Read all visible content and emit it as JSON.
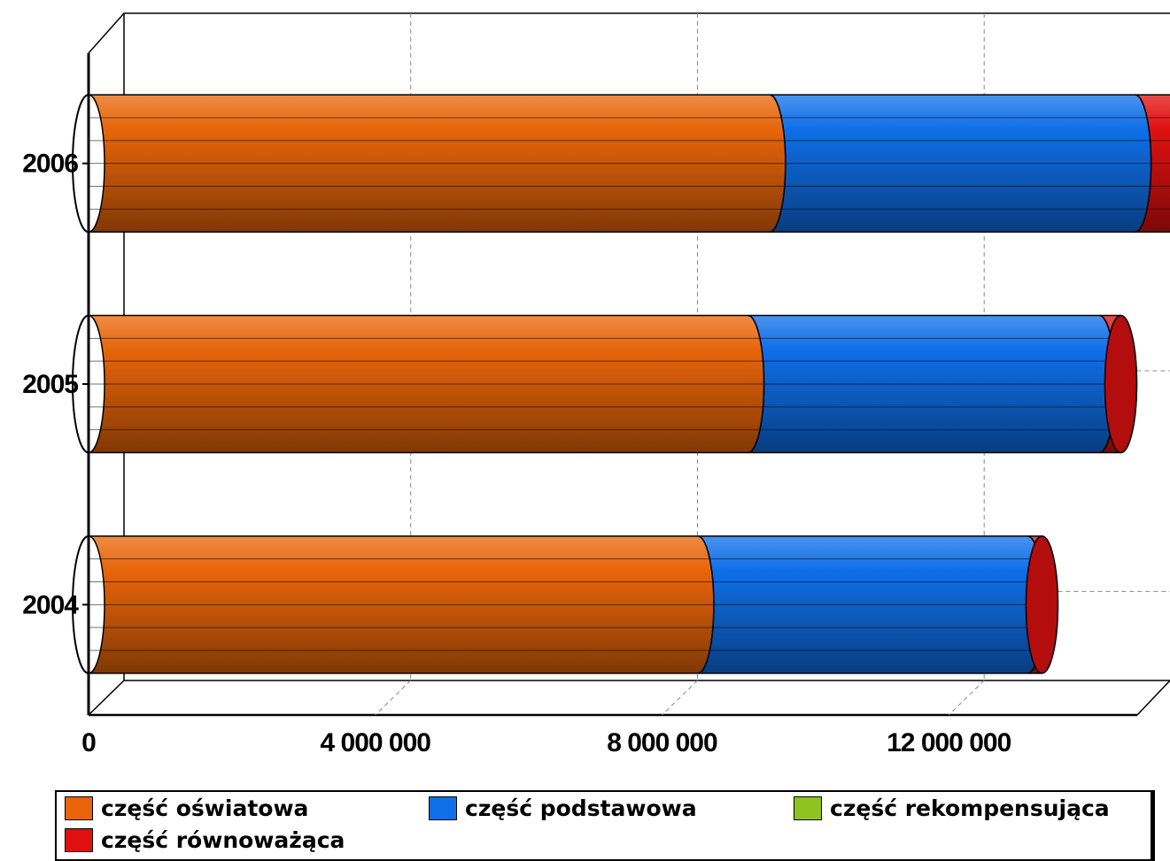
{
  "chart_data": {
    "type": "bar",
    "orientation": "horizontal",
    "stacked": true,
    "style": "3d-cylinder",
    "categories": [
      "2006",
      "2005",
      "2004"
    ],
    "series": [
      {
        "name": "część oświatowa",
        "color": "#e8650a",
        "values": [
          9500000,
          9200000,
          8500000
        ]
      },
      {
        "name": "część podstawowa",
        "color": "#0f6fe8",
        "values": [
          5100000,
          4900000,
          4600000
        ]
      },
      {
        "name": "część rekompensująca",
        "color": "#8fc31f",
        "values": [
          0,
          0,
          0
        ]
      },
      {
        "name": "część równoważąca",
        "color": "#e01010",
        "values": [
          800000,
          300000,
          200000
        ]
      }
    ],
    "xlim": [
      0,
      15000000
    ],
    "xticks": [
      0,
      4000000,
      8000000,
      12000000
    ],
    "xtick_labels": [
      "0",
      "4 000 000",
      "8 000 000",
      "12 000 000"
    ],
    "grid": true,
    "legend_position": "bottom"
  }
}
